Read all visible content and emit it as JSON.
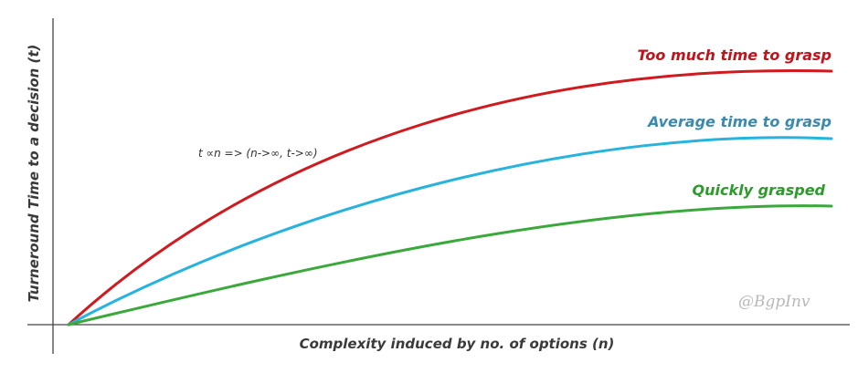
{
  "axes": {
    "y_label": "Turneround Time to a decision (t)",
    "x_label": "Complexity induced by no. of options (n)"
  },
  "curves": [
    {
      "label": "Too much time to grasp"
    },
    {
      "label": "Average time to grasp"
    },
    {
      "label": "Quickly grasped"
    }
  ],
  "annotation": "t ∝n => (n->∞, t->∞)",
  "watermark": "@BgpInv"
}
